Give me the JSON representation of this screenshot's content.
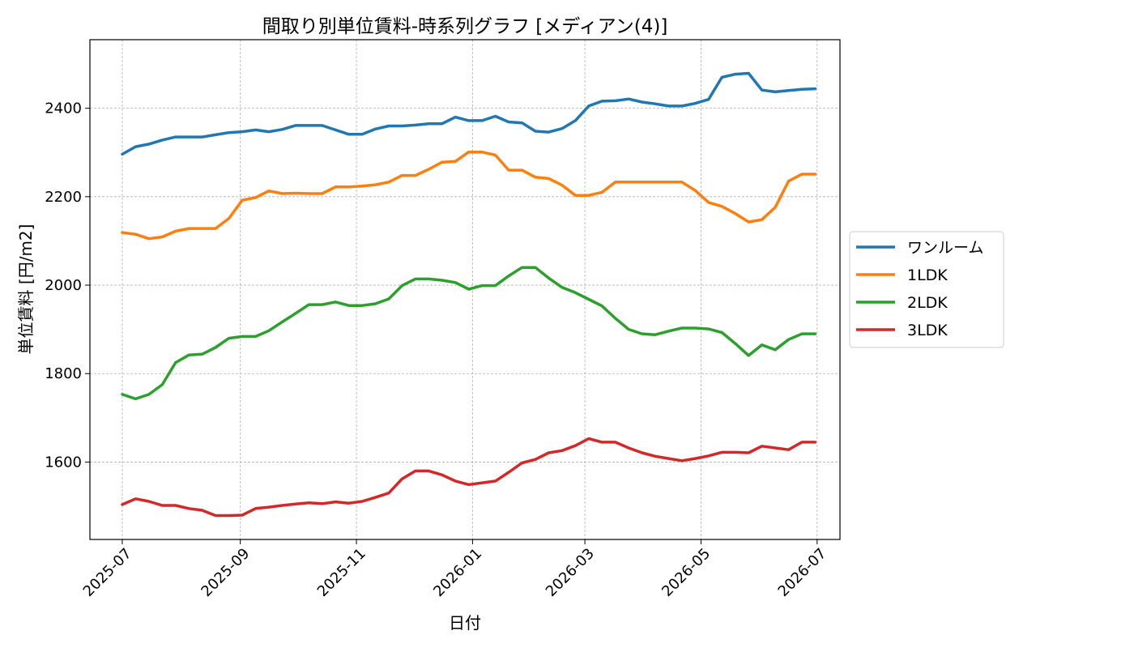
{
  "chart_data": {
    "type": "line",
    "title": "間取り別単位賃料-時系列グラフ [メディアン(4)]",
    "xlabel": "日付",
    "ylabel": "単位賃料 [円/m2]",
    "x_ticks": [
      "2025-07",
      "2025-09",
      "2025-11",
      "2026-01",
      "2026-03",
      "2026-05",
      "2026-07"
    ],
    "y_ticks": [
      1600,
      1800,
      2000,
      2200,
      2400
    ],
    "xlim": [
      "2025-06-14",
      "2026-07-13"
    ],
    "ylim": [
      1425,
      2555
    ],
    "grid": true,
    "legend_position": "center-right",
    "x": [
      "2025-07-01",
      "2025-07-08",
      "2025-07-15",
      "2025-07-22",
      "2025-07-29",
      "2025-08-05",
      "2025-08-12",
      "2025-08-19",
      "2025-08-26",
      "2025-09-02",
      "2025-09-09",
      "2025-09-16",
      "2025-09-23",
      "2025-09-30",
      "2025-10-07",
      "2025-10-14",
      "2025-10-21",
      "2025-10-28",
      "2025-11-04",
      "2025-11-11",
      "2025-11-18",
      "2025-11-25",
      "2025-12-02",
      "2025-12-09",
      "2025-12-16",
      "2025-12-23",
      "2025-12-30",
      "2026-01-06",
      "2026-01-13",
      "2026-01-20",
      "2026-01-27",
      "2026-02-03",
      "2026-02-10",
      "2026-02-17",
      "2026-02-24",
      "2026-03-03",
      "2026-03-10",
      "2026-03-17",
      "2026-03-24",
      "2026-03-31",
      "2026-04-07",
      "2026-04-14",
      "2026-04-21",
      "2026-04-28",
      "2026-05-05",
      "2026-05-12",
      "2026-05-19",
      "2026-05-26",
      "2026-06-02",
      "2026-06-09",
      "2026-06-16",
      "2026-06-23",
      "2026-06-30"
    ],
    "series": [
      {
        "name": "ワンルーム",
        "color": "#1f77b4",
        "values": [
          2296,
          2313,
          2319,
          2328,
          2335,
          2335,
          2335,
          2340,
          2345,
          2347,
          2351,
          2347,
          2352,
          2361,
          2361,
          2361,
          2351,
          2341,
          2341,
          2353,
          2360,
          2360,
          2362,
          2365,
          2365,
          2380,
          2372,
          2372,
          2382,
          2369,
          2367,
          2348,
          2346,
          2354,
          2372,
          2405,
          2416,
          2417,
          2421,
          2414,
          2410,
          2405,
          2405,
          2411,
          2420,
          2470,
          2477,
          2479,
          2441,
          2437,
          2440,
          2443,
          2444
        ]
      },
      {
        "name": "1LDK",
        "color": "#ff7f0e",
        "values": [
          2119,
          2115,
          2105,
          2109,
          2122,
          2128,
          2128,
          2128,
          2151,
          2192,
          2198,
          2213,
          2207,
          2208,
          2207,
          2207,
          2222,
          2222,
          2224,
          2227,
          2233,
          2248,
          2248,
          2262,
          2278,
          2280,
          2301,
          2301,
          2294,
          2260,
          2260,
          2244,
          2241,
          2226,
          2203,
          2203,
          2210,
          2233,
          2233,
          2233,
          2233,
          2233,
          2233,
          2214,
          2187,
          2178,
          2162,
          2143,
          2148,
          2176,
          2235,
          2251,
          2251
        ]
      },
      {
        "name": "2LDK",
        "color": "#2ca02c",
        "values": [
          1753,
          1743,
          1753,
          1775,
          1825,
          1842,
          1844,
          1859,
          1880,
          1884,
          1884,
          1897,
          1917,
          1936,
          1956,
          1956,
          1962,
          1954,
          1954,
          1958,
          1969,
          1999,
          2014,
          2014,
          2011,
          2006,
          1991,
          1999,
          1999,
          2021,
          2040,
          2040,
          2016,
          1995,
          1983,
          1968,
          1953,
          1925,
          1900,
          1890,
          1888,
          1896,
          1903,
          1903,
          1901,
          1893,
          1868,
          1841,
          1865,
          1854,
          1877,
          1890,
          1890
        ]
      },
      {
        "name": "3LDK",
        "color": "#d62728",
        "values": [
          1504,
          1517,
          1511,
          1502,
          1502,
          1495,
          1491,
          1479,
          1479,
          1480,
          1495,
          1498,
          1502,
          1505,
          1508,
          1506,
          1510,
          1507,
          1511,
          1520,
          1530,
          1562,
          1580,
          1580,
          1571,
          1557,
          1549,
          1553,
          1557,
          1577,
          1598,
          1606,
          1621,
          1626,
          1637,
          1653,
          1645,
          1645,
          1632,
          1621,
          1613,
          1608,
          1603,
          1608,
          1614,
          1622,
          1622,
          1621,
          1636,
          1632,
          1628,
          1645,
          1645
        ]
      }
    ]
  }
}
